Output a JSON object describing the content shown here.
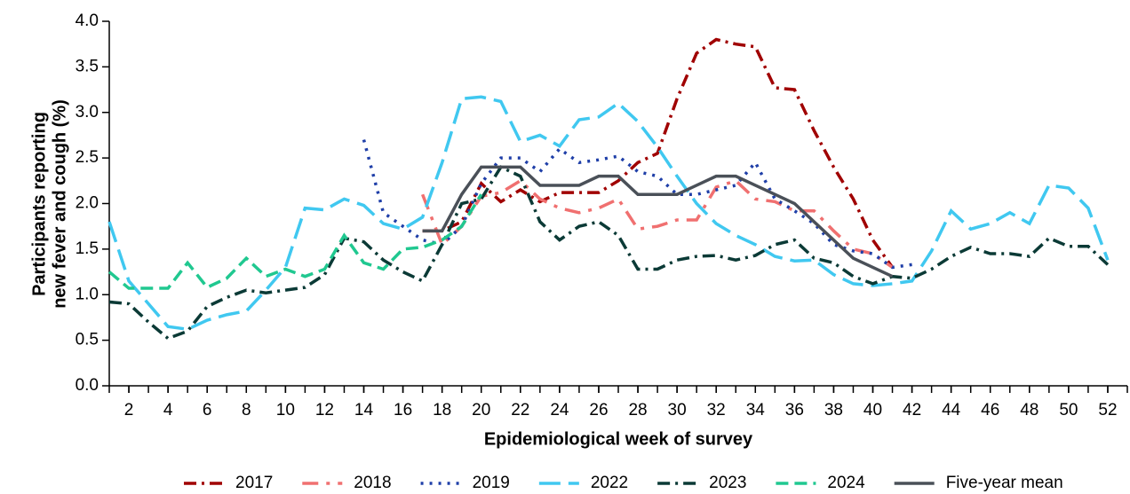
{
  "chart_data": {
    "type": "line",
    "xlabel": "Epidemiological week of survey",
    "ylabel": [
      "Participants reporting",
      "new fever and cough (%)"
    ],
    "x": [
      1,
      2,
      3,
      4,
      5,
      6,
      7,
      8,
      9,
      10,
      11,
      12,
      13,
      14,
      15,
      16,
      17,
      18,
      19,
      20,
      21,
      22,
      23,
      24,
      25,
      26,
      27,
      28,
      29,
      30,
      31,
      32,
      33,
      34,
      35,
      36,
      37,
      38,
      39,
      40,
      41,
      42,
      43,
      44,
      45,
      46,
      47,
      48,
      49,
      50,
      51,
      52
    ],
    "xlim": [
      1,
      53
    ],
    "xticks": [
      2,
      4,
      6,
      8,
      10,
      12,
      14,
      16,
      18,
      20,
      22,
      24,
      26,
      28,
      30,
      32,
      34,
      36,
      38,
      40,
      42,
      44,
      46,
      48,
      50,
      52
    ],
    "ylim": [
      0,
      4
    ],
    "yticks": [
      {
        "value": 0,
        "label": "0.0"
      },
      {
        "value": 0.5,
        "label": "0.5"
      },
      {
        "value": 1,
        "label": "1.0"
      },
      {
        "value": 1.5,
        "label": "1.5"
      },
      {
        "value": 2,
        "label": "2.0"
      },
      {
        "value": 2.5,
        "label": "2.5"
      },
      {
        "value": 3,
        "label": "3.0"
      },
      {
        "value": 3.5,
        "label": "3.5"
      },
      {
        "value": 4,
        "label": "4.0"
      }
    ],
    "legend": "bottom",
    "series": [
      {
        "name": "2017",
        "color": "#a00000",
        "line_style": "dash-dot",
        "values": [
          null,
          null,
          null,
          null,
          null,
          null,
          null,
          null,
          null,
          null,
          null,
          null,
          null,
          null,
          null,
          null,
          1.7,
          1.7,
          1.8,
          2.22,
          2.02,
          2.15,
          2.02,
          2.12,
          2.12,
          2.12,
          2.25,
          2.45,
          2.55,
          3.15,
          3.65,
          3.8,
          3.75,
          3.72,
          3.27,
          3.25,
          2.8,
          2.4,
          2.05,
          1.6,
          1.3,
          null,
          null,
          null,
          null,
          null,
          null,
          null,
          null,
          null,
          null,
          null
        ]
      },
      {
        "name": "2018",
        "color": "#f07070",
        "line_style": "long-dash-dot",
        "values": [
          null,
          null,
          null,
          null,
          null,
          null,
          null,
          null,
          null,
          null,
          null,
          null,
          null,
          null,
          null,
          null,
          2.1,
          1.55,
          1.75,
          2.08,
          2.12,
          2.25,
          2.05,
          1.95,
          1.9,
          1.95,
          2.05,
          1.72,
          1.75,
          1.82,
          1.82,
          2.18,
          2.25,
          2.05,
          2.02,
          1.92,
          1.92,
          1.7,
          1.5,
          1.45,
          1.3,
          null,
          null,
          null,
          null,
          null,
          null,
          null,
          null,
          null,
          null,
          null
        ]
      },
      {
        "name": "2019",
        "color": "#1f3fa8",
        "line_style": "dotted",
        "values": [
          null,
          null,
          null,
          null,
          null,
          null,
          null,
          null,
          null,
          null,
          null,
          null,
          null,
          2.7,
          1.9,
          1.75,
          1.6,
          1.55,
          1.75,
          2.22,
          2.5,
          2.5,
          2.35,
          2.6,
          2.45,
          2.48,
          2.52,
          2.35,
          2.3,
          2.1,
          2.1,
          2.15,
          2.2,
          2.45,
          2.05,
          1.92,
          1.78,
          1.55,
          1.48,
          1.45,
          1.3,
          1.33,
          null,
          null,
          null,
          null,
          null,
          null,
          null,
          null,
          null,
          null
        ]
      },
      {
        "name": "2022",
        "color": "#40c8f0",
        "line_style": "long-dash",
        "values": [
          1.8,
          1.15,
          0.9,
          0.65,
          0.62,
          0.72,
          0.78,
          0.82,
          1.05,
          1.3,
          1.95,
          1.93,
          2.05,
          1.98,
          1.78,
          1.72,
          1.85,
          2.45,
          3.15,
          3.17,
          3.12,
          2.68,
          2.75,
          2.63,
          2.92,
          2.95,
          3.1,
          2.9,
          2.62,
          2.3,
          2.0,
          1.78,
          1.65,
          1.55,
          1.42,
          1.37,
          1.38,
          1.22,
          1.12,
          1.1,
          1.12,
          1.15,
          1.48,
          1.92,
          1.72,
          1.78,
          1.9,
          1.78,
          2.2,
          2.17,
          1.95,
          1.38
        ]
      },
      {
        "name": "2023",
        "color": "#0b3a36",
        "line_style": "dash-dot",
        "values": [
          0.92,
          0.9,
          0.7,
          0.52,
          0.6,
          0.87,
          0.97,
          1.05,
          1.02,
          1.05,
          1.08,
          1.22,
          1.62,
          1.58,
          1.38,
          1.25,
          1.15,
          1.55,
          2.0,
          2.05,
          2.4,
          2.3,
          1.8,
          1.6,
          1.75,
          1.8,
          1.65,
          1.28,
          1.28,
          1.38,
          1.42,
          1.43,
          1.38,
          1.43,
          1.55,
          1.6,
          1.4,
          1.35,
          1.2,
          1.12,
          1.2,
          1.18,
          1.28,
          1.42,
          1.52,
          1.45,
          1.45,
          1.42,
          1.62,
          1.53,
          1.53,
          1.33
        ]
      },
      {
        "name": "2024",
        "color": "#20c890",
        "line_style": "dashed",
        "values": [
          1.25,
          1.07,
          1.07,
          1.07,
          1.35,
          1.08,
          1.18,
          1.4,
          1.2,
          1.28,
          1.2,
          1.28,
          1.65,
          1.35,
          1.28,
          1.5,
          1.52,
          1.6,
          1.75,
          2.1,
          null,
          null,
          null,
          null,
          null,
          null,
          null,
          null,
          null,
          null,
          null,
          null,
          null,
          null,
          null,
          null,
          null,
          null,
          null,
          null,
          null,
          null,
          null,
          null,
          null,
          null,
          null,
          null,
          null,
          null,
          null,
          null
        ]
      },
      {
        "name": "Five-year mean",
        "color": "#4a5058",
        "line_style": "solid",
        "values": [
          null,
          null,
          null,
          null,
          null,
          null,
          null,
          null,
          null,
          null,
          null,
          null,
          null,
          null,
          null,
          null,
          1.7,
          1.7,
          2.1,
          2.4,
          2.4,
          2.4,
          2.2,
          2.2,
          2.2,
          2.3,
          2.3,
          2.1,
          2.1,
          2.1,
          2.2,
          2.3,
          2.3,
          2.2,
          2.1,
          2.0,
          1.8,
          1.6,
          1.4,
          1.3,
          1.2,
          null,
          null,
          null,
          null,
          null,
          null,
          null,
          null,
          null,
          null,
          null
        ]
      }
    ]
  }
}
